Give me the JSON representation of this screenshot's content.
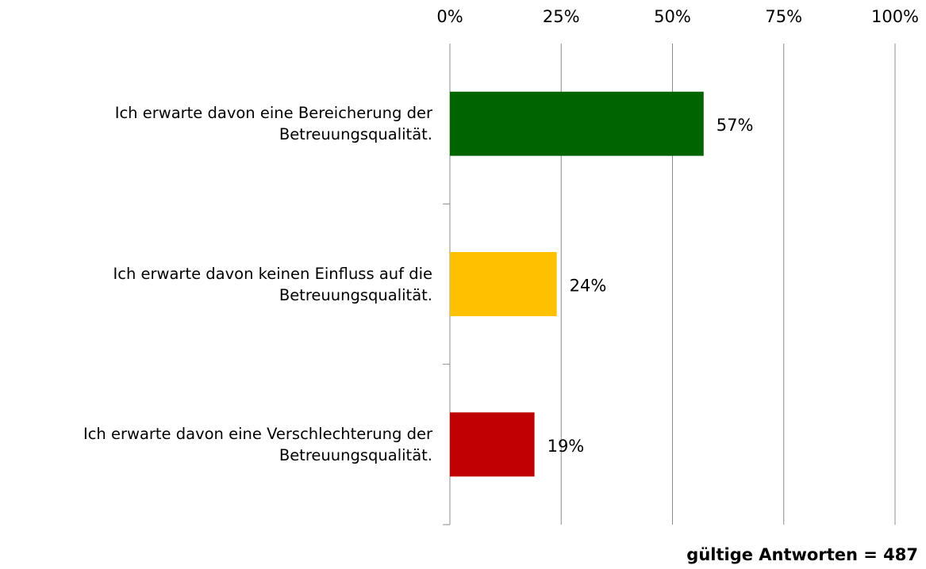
{
  "chart_data": {
    "type": "barh",
    "categories": [
      "Ich erwarte davon eine Bereicherung der Betreuungsqualität.",
      "Ich erwarte davon keinen Einfluss auf die Betreuungsqualität.",
      "Ich erwarte davon eine Verschlechterung der Betreuungsqualität."
    ],
    "values": [
      57,
      24,
      19
    ],
    "value_labels": [
      "57%",
      "24%",
      "19%"
    ],
    "colors": [
      "#006400",
      "#ffc000",
      "#c00000"
    ],
    "xlim": [
      0,
      100
    ],
    "xticks": [
      {
        "value": 0,
        "label": "0%"
      },
      {
        "value": 25,
        "label": "25%"
      },
      {
        "value": 50,
        "label": "50%"
      },
      {
        "value": 75,
        "label": "75%"
      },
      {
        "value": 100,
        "label": "100%"
      }
    ],
    "grid": true,
    "annotation": "gültige Antworten = 487"
  }
}
